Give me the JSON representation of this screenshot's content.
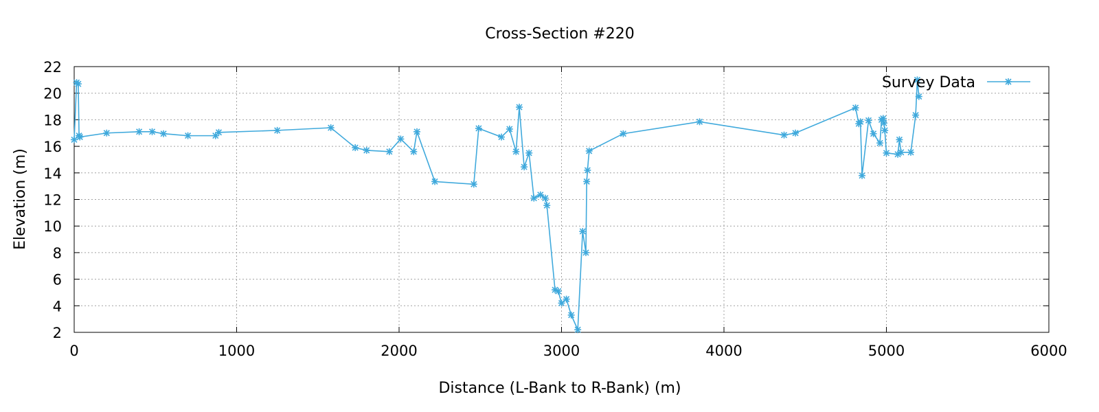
{
  "chart_data": {
    "type": "line",
    "title": "Cross-Section #220",
    "xlabel": "Distance (L-Bank to R-Bank) (m)",
    "ylabel": "Elevation (m)",
    "xlim": [
      0,
      6000
    ],
    "ylim": [
      2,
      22
    ],
    "xticks": [
      0,
      1000,
      2000,
      3000,
      4000,
      5000,
      6000
    ],
    "yticks": [
      2,
      4,
      6,
      8,
      10,
      12,
      14,
      16,
      18,
      20,
      22
    ],
    "grid": true,
    "legend_position": "top-right",
    "color": "#3fa9dc",
    "series": [
      {
        "name": "Survey Data",
        "x": [
          0,
          15,
          25,
          30,
          35,
          200,
          400,
          480,
          550,
          700,
          870,
          890,
          1250,
          1580,
          1730,
          1800,
          1940,
          2010,
          2090,
          2110,
          2220,
          2460,
          2490,
          2630,
          2680,
          2720,
          2740,
          2770,
          2800,
          2830,
          2870,
          2900,
          2910,
          2960,
          2980,
          3000,
          3030,
          3060,
          3100,
          3130,
          3150,
          3155,
          3160,
          3170,
          3380,
          3850,
          4370,
          4440,
          4810,
          4830,
          4840,
          4850,
          4890,
          4920,
          4960,
          4970,
          4980,
          4985,
          4990,
          5000,
          5070,
          5080,
          5090,
          5150,
          5180,
          5190,
          5200
        ],
        "y": [
          16.5,
          20.8,
          20.7,
          16.8,
          16.7,
          17.0,
          17.1,
          17.1,
          16.95,
          16.8,
          16.8,
          17.05,
          17.2,
          17.4,
          15.9,
          15.7,
          15.6,
          16.55,
          15.6,
          17.1,
          13.35,
          13.15,
          17.35,
          16.7,
          17.3,
          15.6,
          18.95,
          14.45,
          15.5,
          12.1,
          12.35,
          12.1,
          11.55,
          5.2,
          5.1,
          4.2,
          4.5,
          3.3,
          2.2,
          9.6,
          8.0,
          13.35,
          14.2,
          15.65,
          16.95,
          17.85,
          16.85,
          17.0,
          18.9,
          17.7,
          17.85,
          13.8,
          17.95,
          16.95,
          16.25,
          18.0,
          18.1,
          17.75,
          17.2,
          15.5,
          15.4,
          16.5,
          15.55,
          15.55,
          18.35,
          21.0,
          19.75
        ]
      }
    ]
  }
}
